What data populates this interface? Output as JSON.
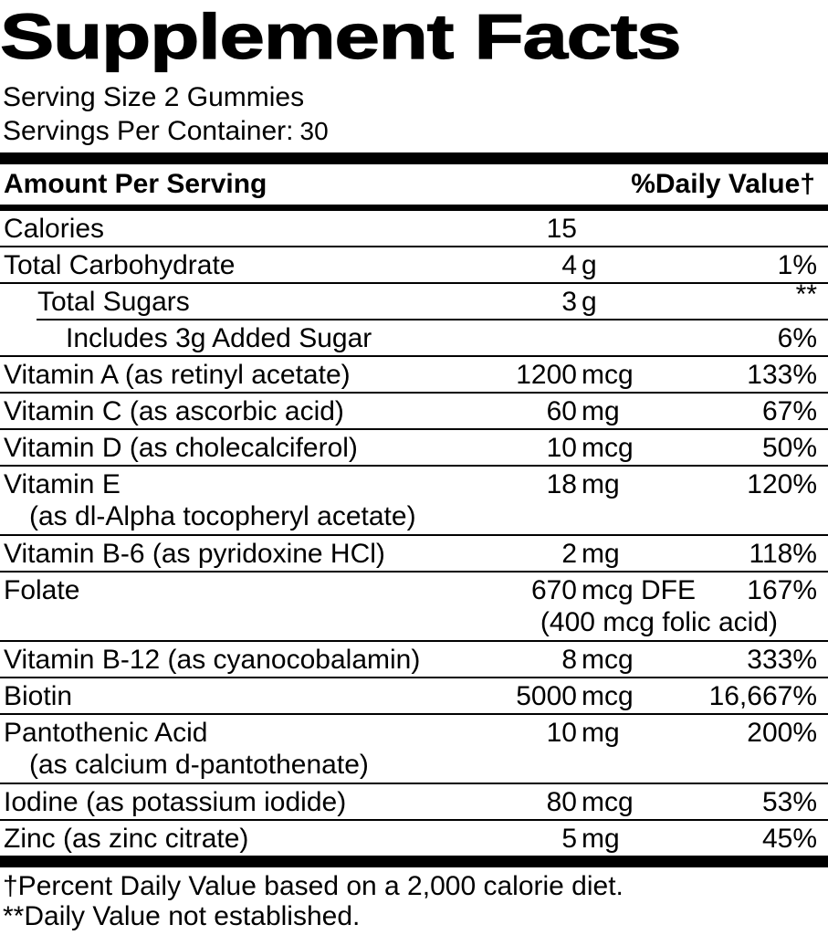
{
  "label": {
    "title": "Supplement Facts",
    "serving_size": "Serving Size 2 Gummies",
    "servings_per_container": {
      "label": "Servings Per Container:",
      "value": "30"
    },
    "header": {
      "amount_column": "Amount Per Serving",
      "daily_value_column": "%Daily Value†"
    },
    "rows": [
      {
        "name": "Calories",
        "amount": "15",
        "unit": "",
        "daily_value": "",
        "level": 0
      },
      {
        "name": "Total Carbohydrate",
        "amount": "4",
        "unit": "g",
        "daily_value": "1%",
        "level": 0
      },
      {
        "name": "Total Sugars",
        "amount": "3",
        "unit": "g",
        "daily_value": "**",
        "level": 1,
        "sub_separator": true
      },
      {
        "name": "Includes 3g Added Sugar",
        "amount": "",
        "unit": "",
        "daily_value": "6%",
        "level": 2
      },
      {
        "name": "Vitamin A (as retinyl acetate)",
        "amount": "1200",
        "unit": "mcg",
        "daily_value": "133%",
        "level": 0
      },
      {
        "name": "Vitamin C (as ascorbic acid)",
        "amount": "60",
        "unit": "mg",
        "daily_value": "67%",
        "level": 0
      },
      {
        "name": "Vitamin D (as cholecalciferol)",
        "amount": "10",
        "unit": "mcg",
        "daily_value": "50%",
        "level": 0
      },
      {
        "name": "Vitamin E",
        "amount": "18",
        "unit": "mg",
        "daily_value": "120%",
        "level": 0,
        "note": "(as dl-Alpha tocopheryl acetate)",
        "note_align": "left"
      },
      {
        "name": "Vitamin B-6 (as pyridoxine HCl)",
        "amount": "2",
        "unit": "mg",
        "daily_value": "118%",
        "level": 0
      },
      {
        "name": "Folate",
        "amount": "670",
        "unit": "mcg DFE",
        "daily_value": "167%",
        "level": 0,
        "note": "(400 mcg folic acid)",
        "note_align": "right"
      },
      {
        "name": "Vitamin B-12 (as cyanocobalamin)",
        "amount": "8",
        "unit": "mcg",
        "daily_value": "333%",
        "level": 0
      },
      {
        "name": "Biotin",
        "amount": "5000",
        "unit": "mcg",
        "daily_value": "16,667%",
        "level": 0
      },
      {
        "name": "Pantothenic Acid",
        "amount": "10",
        "unit": "mg",
        "daily_value": "200%",
        "level": 0,
        "note": "(as calcium d-pantothenate)",
        "note_align": "left"
      },
      {
        "name": "Iodine (as potassium iodide)",
        "amount": "80",
        "unit": "mcg",
        "daily_value": "53%",
        "level": 0
      },
      {
        "name": "Zinc (as zinc citrate)",
        "amount": "5",
        "unit": "mg",
        "daily_value": "45%",
        "level": 0
      }
    ],
    "footnotes": [
      "†Percent Daily Value based on a 2,000 calorie diet.",
      "**Daily Value not established."
    ],
    "colors": {
      "text": "#000000",
      "background": "#ffffff"
    }
  }
}
